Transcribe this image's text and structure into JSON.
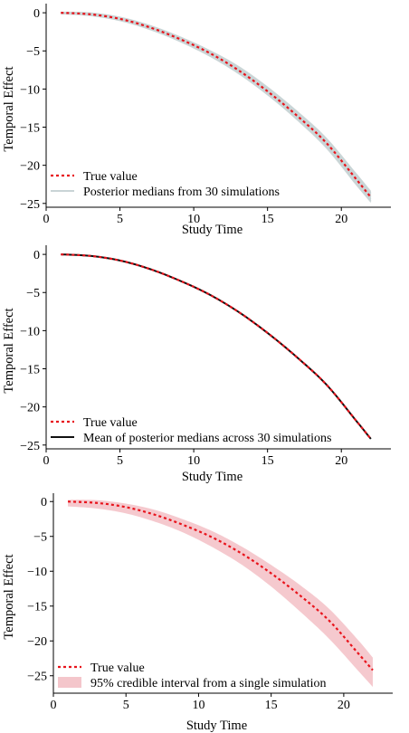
{
  "chart_data": [
    {
      "type": "line",
      "xlabel": "Study Time",
      "ylabel": "Temporal Effect",
      "xlim": [
        0,
        22.5
      ],
      "ylim": [
        -25.5,
        1.2
      ],
      "x_ticks": [
        "0",
        "5",
        "10",
        "15",
        "20"
      ],
      "y_ticks": [
        "0",
        "−5",
        "−10",
        "−15",
        "−20",
        "−25"
      ],
      "x_tick_values": [
        0,
        5,
        10,
        15,
        20
      ],
      "y_tick_values": [
        0,
        -5,
        -10,
        -15,
        -20,
        -25
      ],
      "grid": false,
      "legend_position": "bottom-left",
      "band_kind": "spaghetti",
      "series": [
        {
          "name": "True value",
          "style": "dotted",
          "color": "#e8141c",
          "x": [
            1,
            3,
            5,
            7,
            9,
            11,
            13,
            15,
            17,
            19,
            21,
            22
          ],
          "y": [
            0,
            -0.2,
            -0.8,
            -1.9,
            -3.4,
            -5.2,
            -7.5,
            -10.3,
            -13.5,
            -17.1,
            -21.8,
            -24.2
          ]
        },
        {
          "name": "Posterior medians from 30 simulations",
          "style": "band",
          "color": "#c9d4d6",
          "x": [
            1,
            3,
            5,
            7,
            9,
            11,
            13,
            15,
            17,
            19,
            21,
            22
          ],
          "lower": [
            -0.15,
            -0.4,
            -1.05,
            -2.2,
            -3.75,
            -5.65,
            -8.0,
            -10.85,
            -14.1,
            -17.8,
            -22.6,
            -24.9
          ],
          "upper": [
            0.1,
            0.0,
            -0.55,
            -1.6,
            -3.05,
            -4.8,
            -6.95,
            -9.7,
            -12.85,
            -16.4,
            -21.0,
            -23.4
          ]
        }
      ]
    },
    {
      "type": "line",
      "xlabel": "Study Time",
      "ylabel": "Temporal Effect",
      "xlim": [
        0,
        22.5
      ],
      "ylim": [
        -25.5,
        1.2
      ],
      "x_ticks": [
        "0",
        "5",
        "10",
        "15",
        "20"
      ],
      "y_ticks": [
        "0",
        "−5",
        "−10",
        "−15",
        "−20",
        "−25"
      ],
      "x_tick_values": [
        0,
        5,
        10,
        15,
        20
      ],
      "y_tick_values": [
        0,
        -5,
        -10,
        -15,
        -20,
        -25
      ],
      "grid": false,
      "legend_position": "bottom-left",
      "band_kind": "none",
      "series": [
        {
          "name": "True value",
          "style": "dotted",
          "color": "#e8141c",
          "x": [
            1,
            3,
            5,
            7,
            9,
            11,
            13,
            15,
            17,
            19,
            21,
            22
          ],
          "y": [
            0,
            -0.2,
            -0.8,
            -1.9,
            -3.4,
            -5.2,
            -7.5,
            -10.3,
            -13.5,
            -17.1,
            -21.8,
            -24.2
          ]
        },
        {
          "name": "Mean of posterior medians across 30 simulations",
          "style": "solid",
          "color": "#111111",
          "x": [
            1,
            3,
            5,
            7,
            9,
            11,
            13,
            15,
            17,
            19,
            21,
            22
          ],
          "y": [
            0,
            -0.2,
            -0.8,
            -1.9,
            -3.4,
            -5.2,
            -7.5,
            -10.3,
            -13.5,
            -17.1,
            -21.8,
            -24.2
          ]
        }
      ]
    },
    {
      "type": "line",
      "xlabel": "Study Time",
      "ylabel": "Temporal Effect",
      "xlim": [
        0,
        22.5
      ],
      "ylim": [
        -27.5,
        1.2
      ],
      "x_ticks": [
        "0",
        "5",
        "10",
        "15",
        "20"
      ],
      "y_ticks": [
        "0",
        "−5",
        "−10",
        "−15",
        "−20",
        "−25"
      ],
      "x_tick_values": [
        0,
        5,
        10,
        15,
        20
      ],
      "y_tick_values": [
        0,
        -5,
        -10,
        -15,
        -20,
        -25
      ],
      "grid": false,
      "legend_position": "bottom-left",
      "band_kind": "ci",
      "series": [
        {
          "name": "True value",
          "style": "dotted",
          "color": "#e8141c",
          "x": [
            1,
            3,
            5,
            7,
            9,
            11,
            13,
            15,
            17,
            19,
            21,
            22
          ],
          "y": [
            0,
            -0.2,
            -0.8,
            -1.9,
            -3.4,
            -5.2,
            -7.5,
            -10.3,
            -13.5,
            -17.1,
            -21.8,
            -24.2
          ]
        },
        {
          "name": "95% credible interval from a single simulation",
          "style": "band",
          "color": "#f4c6cb",
          "x": [
            1,
            3,
            5,
            7,
            9,
            11,
            13,
            15,
            17,
            19,
            21,
            22
          ],
          "lower": [
            -0.7,
            -1.0,
            -1.7,
            -2.9,
            -4.5,
            -6.6,
            -9.1,
            -12.2,
            -15.8,
            -19.7,
            -24.3,
            -26.6
          ],
          "upper": [
            0.25,
            0.2,
            -0.3,
            -1.2,
            -2.6,
            -4.3,
            -6.5,
            -9.1,
            -12.0,
            -15.4,
            -19.9,
            -22.4
          ]
        }
      ]
    }
  ]
}
